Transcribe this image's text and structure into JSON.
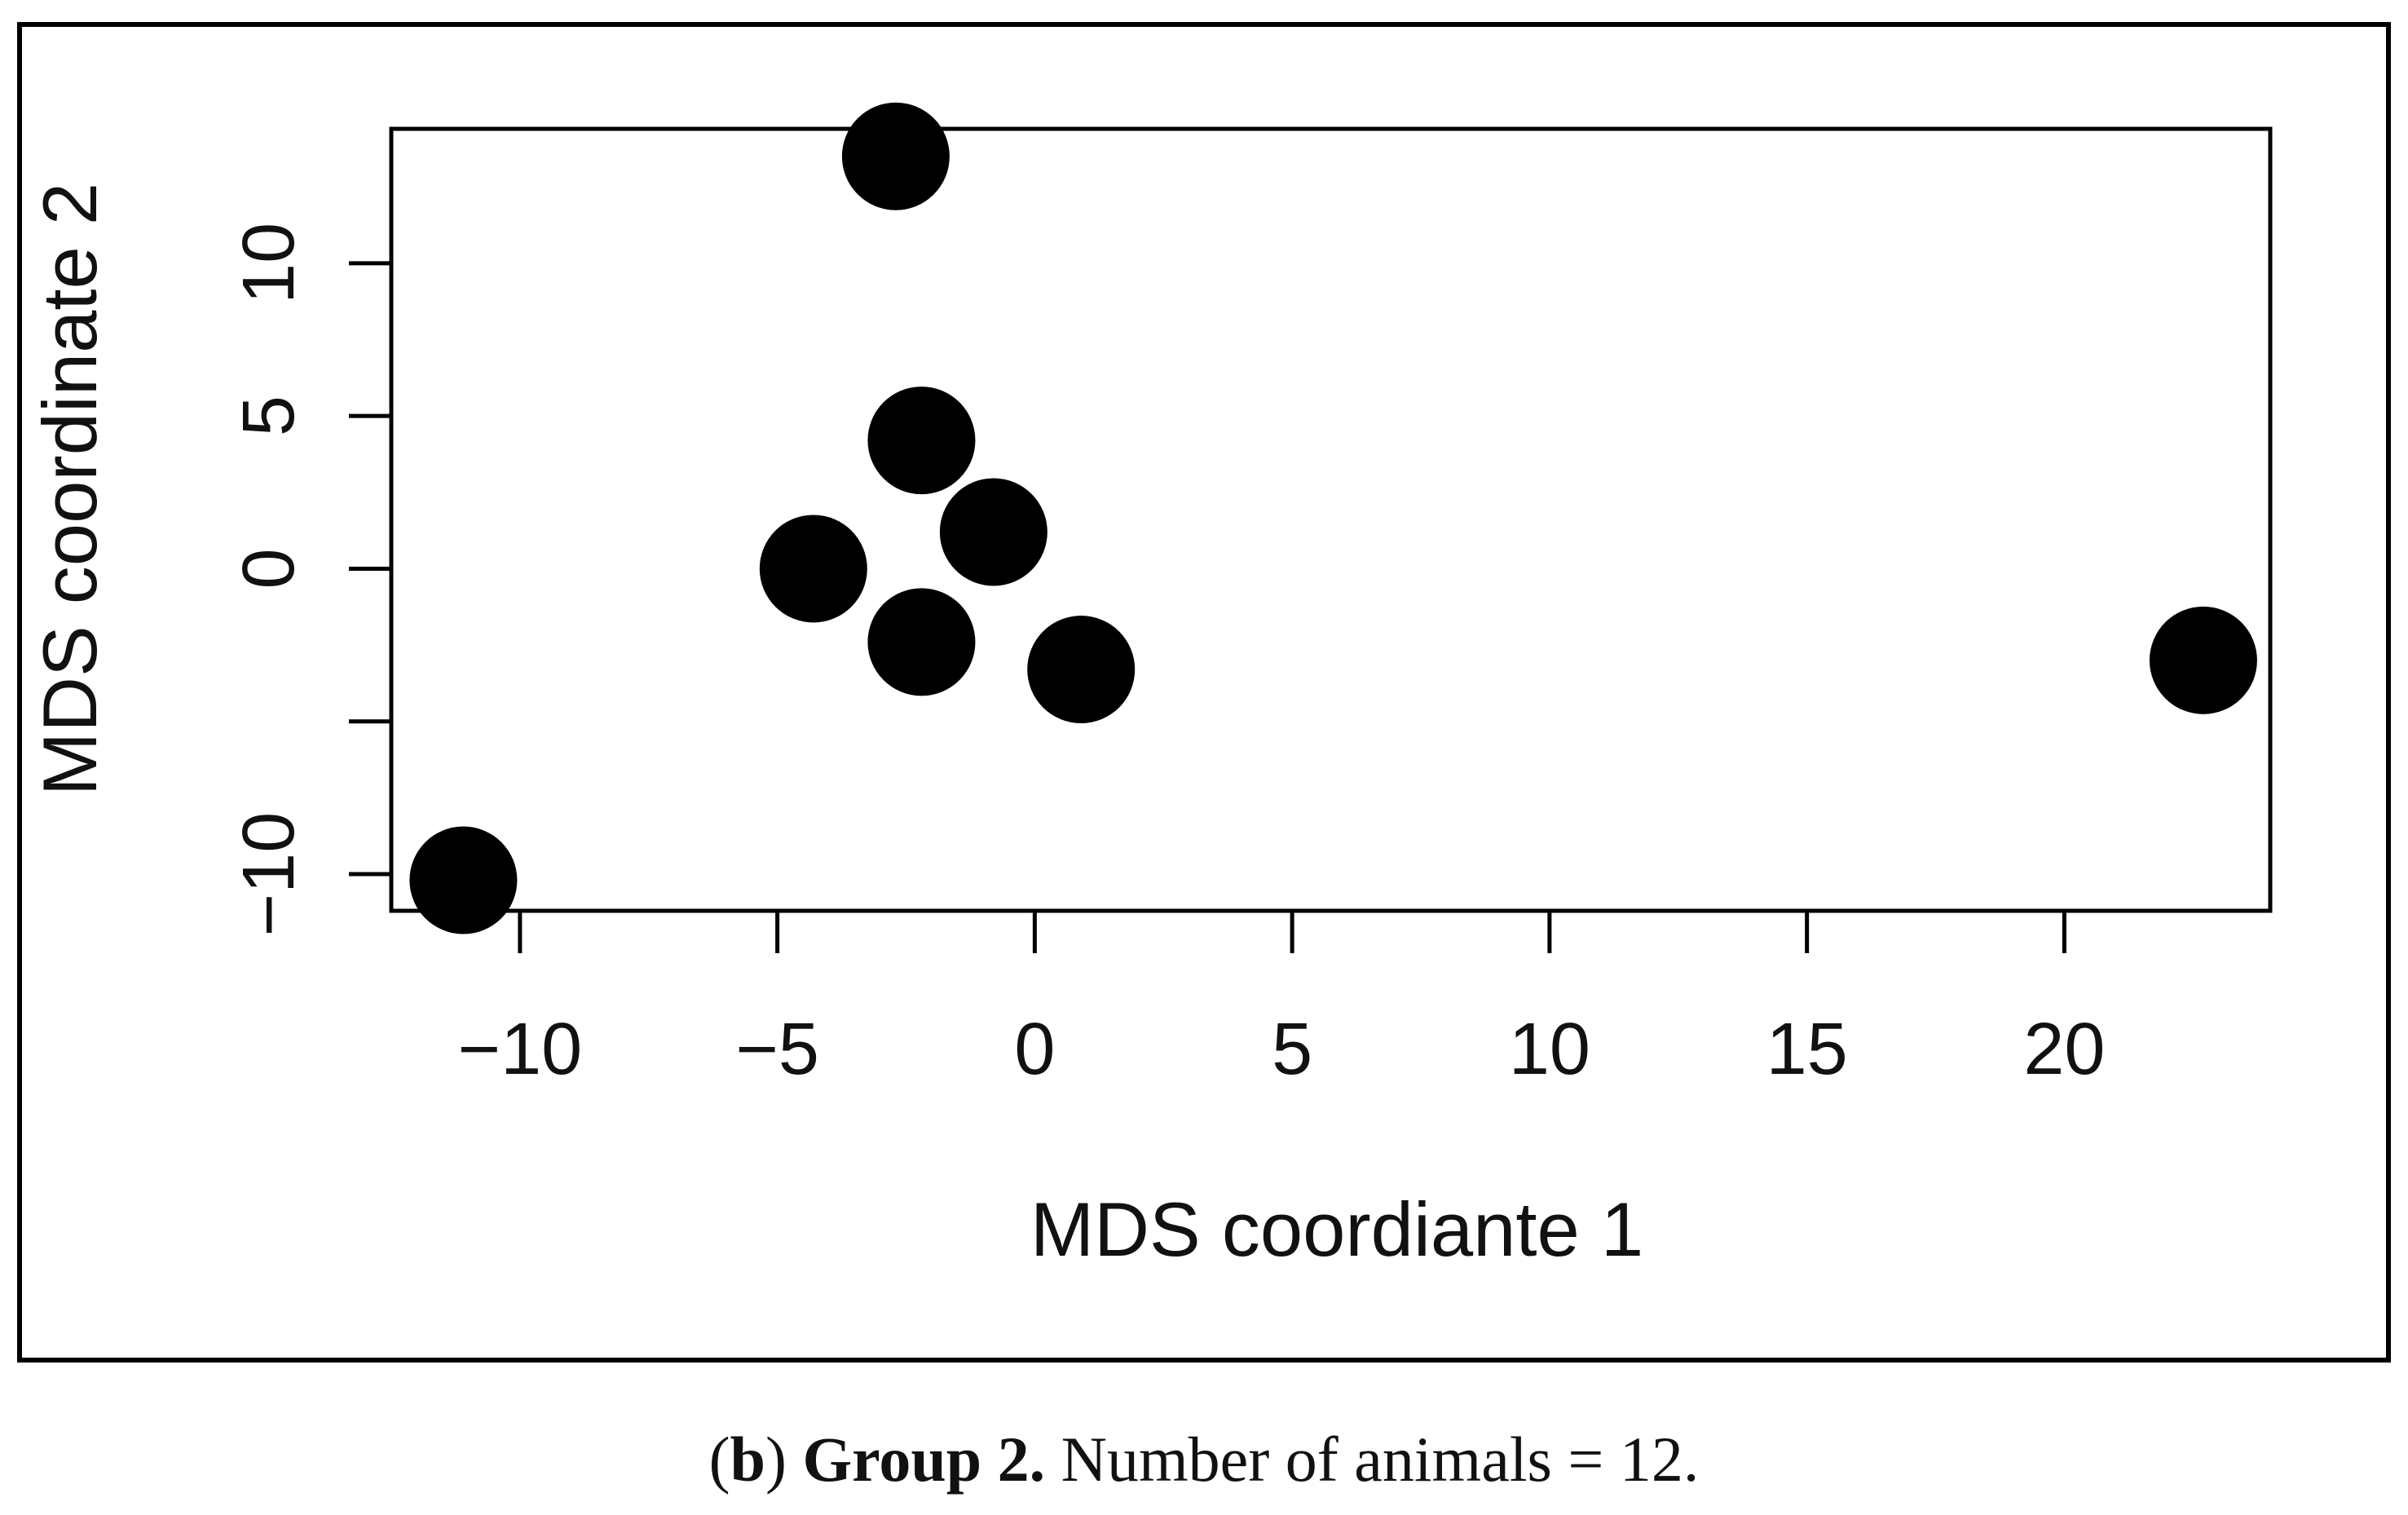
{
  "chart_data": {
    "type": "scatter",
    "title": "",
    "xlabel": "MDS coordiante 1",
    "ylabel": "MDS coordinate 2",
    "xlim": [
      -12.5,
      24
    ],
    "ylim": [
      -11.2,
      14.4
    ],
    "x_ticks": [
      -10,
      -5,
      0,
      5,
      10,
      15,
      20
    ],
    "x_tick_labels": [
      "−10",
      "−5",
      "0",
      "5",
      "10",
      "15",
      "20"
    ],
    "y_ticks": [
      -10,
      -5,
      0,
      5,
      10
    ],
    "y_tick_labels": [
      "−10",
      "",
      "0",
      "5",
      "10"
    ],
    "grid": false,
    "legend": "none",
    "marker": "filled-circle",
    "marker_color": "#000000",
    "series": [
      {
        "name": "Group 2",
        "x": [
          -2.7,
          -2.2,
          -0.8,
          -4.3,
          -2.2,
          0.9,
          22.7,
          -11.1
        ],
        "y": [
          13.5,
          4.2,
          1.2,
          0.0,
          -2.4,
          -3.3,
          -3.0,
          -10.2
        ]
      }
    ]
  },
  "caption": {
    "panel": "b",
    "group_label": "Group 2.",
    "text": "Number of animals = 12."
  }
}
